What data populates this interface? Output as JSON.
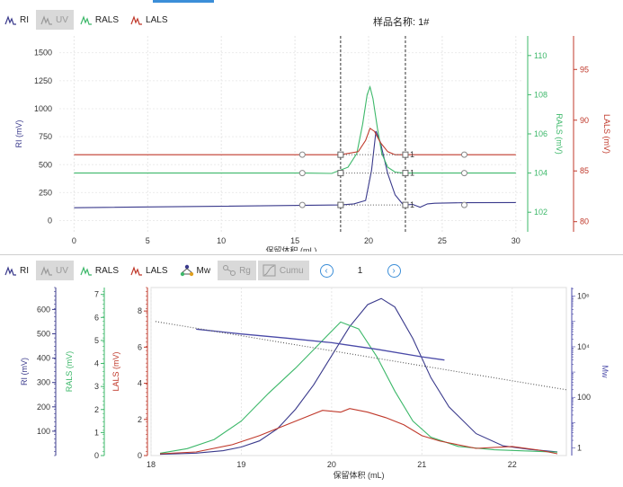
{
  "top_panel": {
    "toolbar": [
      {
        "label": "RI",
        "state": "on",
        "color": "#3a3a8c"
      },
      {
        "label": "UV",
        "state": "off",
        "color": "#9a9a9a"
      },
      {
        "label": "RALS",
        "state": "on",
        "color": "#3db86a"
      },
      {
        "label": "LALS",
        "state": "on",
        "color": "#c0392b"
      }
    ],
    "sample_title": "样品名称: 1#"
  },
  "bottom_panel": {
    "toolbar": [
      {
        "label": "RI",
        "state": "on",
        "color": "#3a3a8c"
      },
      {
        "label": "UV",
        "state": "off",
        "color": "#9a9a9a"
      },
      {
        "label": "RALS",
        "state": "on",
        "color": "#3db86a"
      },
      {
        "label": "LALS",
        "state": "on",
        "color": "#c0392b"
      },
      {
        "label": "Mw",
        "state": "on",
        "color": "#3a3a8c"
      },
      {
        "label": "Rg",
        "state": "off",
        "color": "#9a9a9a"
      },
      {
        "label": "Cumu",
        "state": "off",
        "color": "#9a9a9a"
      }
    ],
    "page_number": "1",
    "prev_icon": "chevron-left-icon",
    "next_icon": "chevron-right-icon"
  },
  "colors": {
    "ri": "#3a3a8c",
    "rals": "#3db86a",
    "lals": "#c0392b",
    "mw": "#4a4aa8",
    "accent": "#3b8ed8"
  },
  "chart_data": [
    {
      "type": "line",
      "xlabel": "保留体积 (mL)",
      "xlim": [
        -1,
        30.5
      ],
      "xticks": [
        0,
        5,
        10,
        15,
        20,
        25,
        30
      ],
      "axes": [
        {
          "id": "ri",
          "label": "RI (mV)",
          "side": "left",
          "ylim": [
            -100,
            1650
          ],
          "ticks": [
            0,
            250,
            500,
            750,
            1000,
            1250,
            1500
          ]
        },
        {
          "id": "rals",
          "label": "RALS (mV)",
          "side": "right",
          "ylim": [
            101,
            111
          ],
          "ticks": [
            102,
            104,
            106,
            108,
            110
          ]
        },
        {
          "id": "lals",
          "label": "LALS (mV)",
          "side": "right",
          "ylim": [
            79,
            98.3
          ],
          "ticks": [
            80,
            85,
            90,
            95
          ]
        }
      ],
      "vertical_markers": [
        18.1,
        22.5
      ],
      "series": [
        {
          "name": "RI",
          "axis": "ri",
          "x": [
            0,
            18.1,
            19,
            19.8,
            20.2,
            20.5,
            20.8,
            21.3,
            21.8,
            22.3,
            22.5,
            23,
            23.5,
            24,
            24.5,
            26.5,
            30
          ],
          "y": [
            115,
            140,
            150,
            180,
            450,
            800,
            700,
            420,
            230,
            150,
            140,
            145,
            120,
            150,
            155,
            160,
            162
          ]
        },
        {
          "name": "RALS",
          "axis": "rals",
          "x": [
            0,
            15.5,
            17.5,
            18.6,
            19.2,
            19.6,
            19.9,
            20.1,
            20.3,
            20.6,
            20.9,
            21.3,
            21.8,
            22.3,
            22.5,
            24,
            26.5,
            30
          ],
          "y": [
            104,
            104,
            103.98,
            104.3,
            105,
            106.5,
            108,
            108.4,
            107.8,
            106.3,
            105,
            104.3,
            104.05,
            104,
            104,
            104,
            104,
            104
          ]
        },
        {
          "name": "LALS",
          "axis": "lals",
          "x": [
            0,
            15.5,
            18.1,
            19.3,
            19.8,
            20.1,
            20.4,
            20.8,
            21.3,
            21.8,
            22.5,
            26.5,
            30
          ],
          "y": [
            86.6,
            86.6,
            86.6,
            86.9,
            88,
            89.2,
            88.9,
            87.8,
            86.9,
            86.6,
            86.6,
            86.6,
            86.6
          ]
        }
      ],
      "markers": {
        "circles_x": [
          15.5,
          26.5
        ],
        "squares_x": [
          18.1,
          22.5
        ],
        "square_label": "1"
      }
    },
    {
      "type": "line",
      "xlabel": "保留体积 (mL)",
      "xlim": [
        18,
        22.6
      ],
      "xticks": [
        18,
        19,
        20,
        21,
        22
      ],
      "axes": [
        {
          "id": "ri",
          "label": "RI (mV)",
          "ylim": [
            0,
            690
          ],
          "ticks": [
            100,
            200,
            300,
            400,
            500,
            600
          ]
        },
        {
          "id": "rals",
          "label": "RALS (mV)",
          "ylim": [
            0,
            7.3
          ],
          "ticks": [
            0,
            1,
            2,
            3,
            4,
            5,
            6,
            7
          ]
        },
        {
          "id": "lals",
          "label": "LALS (mV)",
          "ylim": [
            0,
            9.3
          ],
          "ticks": [
            0,
            2,
            4,
            6,
            8
          ]
        },
        {
          "id": "mw",
          "label": "Mw",
          "scale": "log",
          "ylim": [
            0.5,
            2200000
          ],
          "ticks": [
            "1",
            "100",
            "10⁴",
            "10⁶"
          ]
        }
      ],
      "series": [
        {
          "name": "RI",
          "axis": "ri",
          "x": [
            18.1,
            18.5,
            18.8,
            19.0,
            19.2,
            19.4,
            19.6,
            19.8,
            20.0,
            20.2,
            20.4,
            20.55,
            20.7,
            20.9,
            21.1,
            21.3,
            21.6,
            21.9,
            22.2,
            22.5
          ],
          "y": [
            5,
            10,
            20,
            35,
            60,
            110,
            190,
            290,
            410,
            530,
            620,
            645,
            610,
            480,
            320,
            200,
            90,
            40,
            25,
            15
          ]
        },
        {
          "name": "RALS",
          "axis": "rals",
          "x": [
            18.1,
            18.4,
            18.7,
            19.0,
            19.3,
            19.6,
            19.8,
            19.95,
            20.1,
            20.3,
            20.5,
            20.7,
            20.9,
            21.1,
            21.4,
            21.8,
            22.5
          ],
          "y": [
            0.1,
            0.3,
            0.7,
            1.5,
            2.7,
            3.8,
            4.6,
            5.2,
            5.8,
            5.5,
            4.3,
            2.8,
            1.5,
            0.8,
            0.4,
            0.25,
            0.15
          ]
        },
        {
          "name": "LALS",
          "axis": "lals",
          "x": [
            18.1,
            18.5,
            18.9,
            19.2,
            19.5,
            19.7,
            19.9,
            20.1,
            20.2,
            20.4,
            20.6,
            20.8,
            21.0,
            21.2,
            21.6,
            22.0,
            22.3,
            22.5
          ],
          "y": [
            0.1,
            0.2,
            0.6,
            1.1,
            1.7,
            2.1,
            2.5,
            2.4,
            2.6,
            2.4,
            2.1,
            1.7,
            1.1,
            0.8,
            0.4,
            0.5,
            0.3,
            0.1
          ]
        },
        {
          "name": "Mw",
          "axis": "mw",
          "x": [
            18.5,
            19.0,
            19.5,
            20.0,
            20.5,
            21.0,
            21.25
          ],
          "y": [
            50000,
            32000,
            22000,
            14500,
            8000,
            4000,
            3000
          ]
        },
        {
          "name": "Mw fit",
          "axis": "mw",
          "style": "dotted",
          "x": [
            18.05,
            22.6
          ],
          "y": [
            100000,
            200
          ]
        }
      ]
    }
  ]
}
